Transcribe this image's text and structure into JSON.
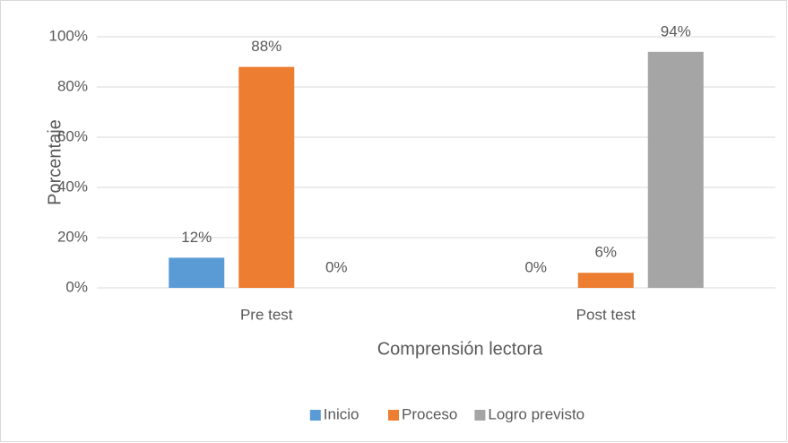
{
  "chart_data": {
    "type": "bar",
    "categories": [
      "Pre test",
      "Post test"
    ],
    "series": [
      {
        "name": "Inicio",
        "color": "#5b9bd5",
        "values": [
          12,
          0
        ],
        "value_labels": [
          "12%",
          "0%"
        ]
      },
      {
        "name": "Proceso",
        "color": "#ed7d31",
        "values": [
          88,
          6
        ],
        "value_labels": [
          "88%",
          "6%"
        ]
      },
      {
        "name": "Logro previsto",
        "color": "#a5a5a5",
        "values": [
          0,
          94
        ],
        "value_labels": [
          "0%",
          "94%"
        ]
      }
    ],
    "xlabel": "Comprensión lectora",
    "ylabel": "Porcentaje",
    "ylim": [
      0,
      100
    ],
    "yticks": [
      {
        "value": 0,
        "label": "0%"
      },
      {
        "value": 20,
        "label": "20%"
      },
      {
        "value": 40,
        "label": "40%"
      },
      {
        "value": 60,
        "label": "60%"
      },
      {
        "value": 80,
        "label": "80%"
      },
      {
        "value": 100,
        "label": "100%"
      }
    ],
    "grid": true,
    "legend": "bottom"
  }
}
